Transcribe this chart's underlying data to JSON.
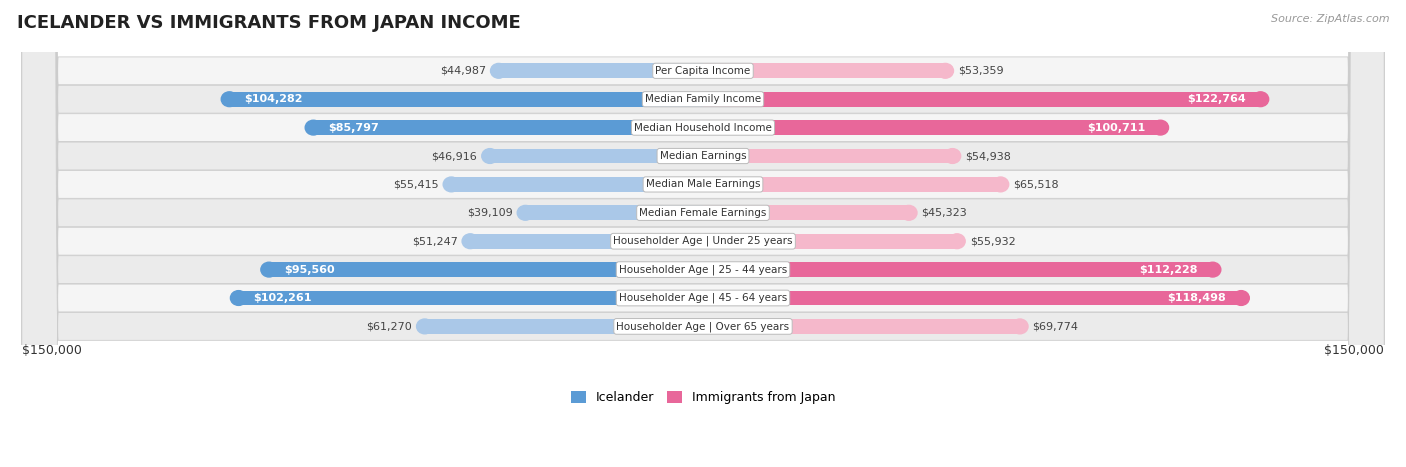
{
  "title": "Icelander vs Immigrants from Japan Income",
  "source": "Source: ZipAtlas.com",
  "categories": [
    "Per Capita Income",
    "Median Family Income",
    "Median Household Income",
    "Median Earnings",
    "Median Male Earnings",
    "Median Female Earnings",
    "Householder Age | Under 25 years",
    "Householder Age | 25 - 44 years",
    "Householder Age | 45 - 64 years",
    "Householder Age | Over 65 years"
  ],
  "icelander_values": [
    44987,
    104282,
    85797,
    46916,
    55415,
    39109,
    51247,
    95560,
    102261,
    61270
  ],
  "japan_values": [
    53359,
    122764,
    100711,
    54938,
    65518,
    45323,
    55932,
    112228,
    118498,
    69774
  ],
  "icelander_labels": [
    "$44,987",
    "$104,282",
    "$85,797",
    "$46,916",
    "$55,415",
    "$39,109",
    "$51,247",
    "$95,560",
    "$102,261",
    "$61,270"
  ],
  "japan_labels": [
    "$53,359",
    "$122,764",
    "$100,711",
    "$54,938",
    "$65,518",
    "$45,323",
    "$55,932",
    "$112,228",
    "$118,498",
    "$69,774"
  ],
  "max_value": 150000,
  "icelander_color_light": "#aac8e8",
  "icelander_color_dark": "#5b9bd5",
  "japan_color_light": "#f5b8cb",
  "japan_color_dark": "#e8679a",
  "bar_height": 0.52,
  "row_bg_even": "#f5f5f5",
  "row_bg_odd": "#ebebeb",
  "bg_color": "#ffffff",
  "legend_icelander": "Icelander",
  "legend_japan": "Immigrants from Japan",
  "axis_label_left": "$150,000",
  "axis_label_right": "$150,000",
  "inside_threshold": 80000,
  "title_fontsize": 13,
  "source_fontsize": 8,
  "bar_label_fontsize": 8,
  "cat_label_fontsize": 7.5
}
